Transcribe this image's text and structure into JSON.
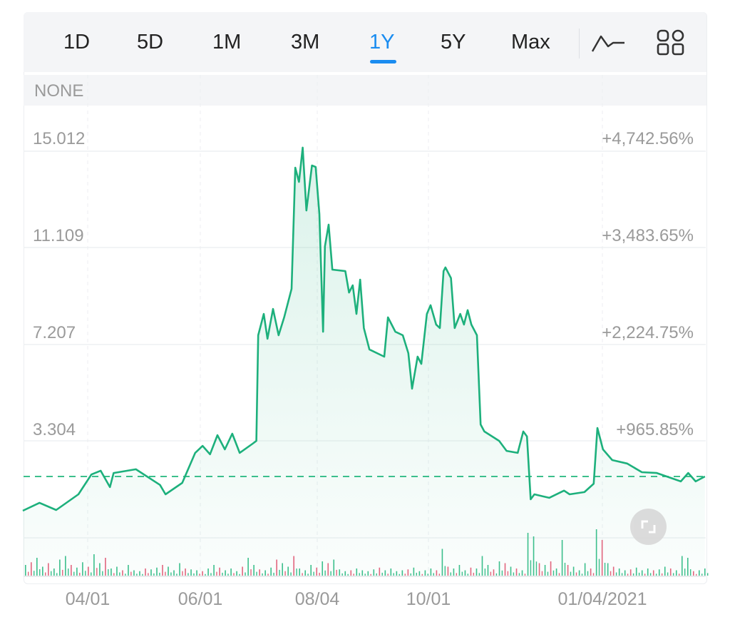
{
  "toolbar": {
    "tabs": [
      {
        "label": "1D"
      },
      {
        "label": "5D"
      },
      {
        "label": "1M"
      },
      {
        "label": "3M"
      },
      {
        "label": "1Y",
        "active": true
      },
      {
        "label": "5Y"
      },
      {
        "label": "Max"
      }
    ],
    "icons": [
      "line-chart-style-icon",
      "indicators-grid-icon"
    ]
  },
  "indicator_band": {
    "label": "NONE"
  },
  "colors": {
    "line": "#1db07c",
    "accent": "#1a8cf0",
    "up": "#3cbf8c",
    "down": "#e2657e",
    "reference": "#3cbf8c"
  },
  "chart_data": {
    "type": "line",
    "y_left_ticks": [
      "15.012",
      "11.109",
      "7.207",
      "3.304"
    ],
    "y_right_ticks": [
      "+4,742.56%",
      "+3,483.65%",
      "+2,224.75%",
      "+965.85%"
    ],
    "x_ticks": [
      "04/01",
      "06/01",
      "08/04",
      "10/01",
      "01/04/2021"
    ],
    "reference_line": 1.44,
    "grid": true,
    "points": [
      [
        "2020-02-26",
        0.06
      ],
      [
        "2020-03-06",
        0.38
      ],
      [
        "2020-03-15",
        0.09
      ],
      [
        "2020-03-27",
        0.72
      ],
      [
        "2020-04-03",
        1.52
      ],
      [
        "2020-04-08",
        1.67
      ],
      [
        "2020-04-13",
        1.01
      ],
      [
        "2020-04-15",
        1.58
      ],
      [
        "2020-04-27",
        1.73
      ],
      [
        "2020-05-10",
        1.1
      ],
      [
        "2020-05-13",
        0.72
      ],
      [
        "2020-05-22",
        1.18
      ],
      [
        "2020-05-29",
        2.39
      ],
      [
        "2020-06-02",
        2.67
      ],
      [
        "2020-06-06",
        2.33
      ],
      [
        "2020-06-10",
        3.1
      ],
      [
        "2020-06-14",
        2.53
      ],
      [
        "2020-06-18",
        3.16
      ],
      [
        "2020-06-22",
        2.39
      ],
      [
        "2020-06-29",
        2.76
      ],
      [
        "2020-07-01",
        2.87
      ],
      [
        "2020-07-02",
        7.12
      ],
      [
        "2020-07-05",
        7.98
      ],
      [
        "2020-07-07",
        6.98
      ],
      [
        "2020-07-10",
        8.18
      ],
      [
        "2020-07-13",
        7.12
      ],
      [
        "2020-07-16",
        7.84
      ],
      [
        "2020-07-20",
        8.99
      ],
      [
        "2020-07-22",
        13.86
      ],
      [
        "2020-07-24",
        13.29
      ],
      [
        "2020-07-26",
        14.67
      ],
      [
        "2020-07-28",
        12.14
      ],
      [
        "2020-07-31",
        13.95
      ],
      [
        "2020-08-02",
        13.89
      ],
      [
        "2020-08-04",
        12.0
      ],
      [
        "2020-08-06",
        7.26
      ],
      [
        "2020-08-07",
        10.7
      ],
      [
        "2020-08-09",
        11.57
      ],
      [
        "2020-08-11",
        9.76
      ],
      [
        "2020-08-18",
        9.7
      ],
      [
        "2020-08-20",
        8.84
      ],
      [
        "2020-08-22",
        9.13
      ],
      [
        "2020-08-24",
        7.98
      ],
      [
        "2020-08-26",
        9.36
      ],
      [
        "2020-08-28",
        7.41
      ],
      [
        "2020-08-31",
        6.55
      ],
      [
        "2020-09-08",
        6.26
      ],
      [
        "2020-09-10",
        7.84
      ],
      [
        "2020-09-14",
        7.26
      ],
      [
        "2020-09-18",
        7.12
      ],
      [
        "2020-09-21",
        6.4
      ],
      [
        "2020-09-23",
        4.97
      ],
      [
        "2020-09-26",
        6.26
      ],
      [
        "2020-09-28",
        5.97
      ],
      [
        "2020-10-01",
        7.98
      ],
      [
        "2020-10-03",
        8.33
      ],
      [
        "2020-10-06",
        7.55
      ],
      [
        "2020-10-08",
        7.41
      ],
      [
        "2020-10-10",
        9.7
      ],
      [
        "2020-10-11",
        9.85
      ],
      [
        "2020-10-14",
        9.42
      ],
      [
        "2020-10-16",
        7.41
      ],
      [
        "2020-10-19",
        7.98
      ],
      [
        "2020-10-21",
        7.55
      ],
      [
        "2020-10-23",
        8.13
      ],
      [
        "2020-10-25",
        7.55
      ],
      [
        "2020-10-28",
        7.12
      ],
      [
        "2020-10-30",
        3.53
      ],
      [
        "2020-11-01",
        3.25
      ],
      [
        "2020-11-09",
        2.87
      ],
      [
        "2020-11-13",
        2.47
      ],
      [
        "2020-11-19",
        2.39
      ],
      [
        "2020-11-22",
        3.25
      ],
      [
        "2020-11-24",
        3.05
      ],
      [
        "2020-11-26",
        0.52
      ],
      [
        "2020-11-28",
        0.72
      ],
      [
        "2020-12-06",
        0.58
      ],
      [
        "2020-12-14",
        0.87
      ],
      [
        "2020-12-17",
        0.72
      ],
      [
        "2020-12-25",
        0.81
      ],
      [
        "2020-12-30",
        1.15
      ],
      [
        "2021-01-01",
        3.39
      ],
      [
        "2021-01-04",
        2.53
      ],
      [
        "2021-01-09",
        2.1
      ],
      [
        "2021-01-17",
        1.96
      ],
      [
        "2021-01-25",
        1.61
      ],
      [
        "2021-02-02",
        1.58
      ],
      [
        "2021-02-15",
        1.24
      ],
      [
        "2021-02-19",
        1.58
      ],
      [
        "2021-02-23",
        1.24
      ],
      [
        "2021-02-28",
        1.44
      ]
    ],
    "volume": [
      12,
      -15,
      20,
      10,
      -14,
      8,
      18,
      22,
      -12,
      9,
      15,
      -10,
      24,
      14,
      -20,
      8,
      10,
      -6,
      12,
      6,
      5,
      -8,
      7,
      9,
      -12,
      10,
      6,
      14,
      -8,
      7,
      6,
      -5,
      8,
      12,
      -9,
      6,
      8,
      5,
      -10,
      20,
      12,
      -7,
      6,
      9,
      -18,
      14,
      10,
      -22,
      8,
      6,
      12,
      -9,
      16,
      -14,
      18,
      7,
      5,
      -6,
      8,
      6,
      5,
      7,
      -9,
      6,
      8,
      5,
      6,
      -7,
      9,
      5,
      6,
      8,
      -6,
      30,
      -10,
      8,
      12,
      6,
      -9,
      8,
      22,
      12,
      -7,
      16,
      -14,
      10,
      -8,
      6,
      48,
      44,
      -14,
      12,
      -16,
      8,
      40,
      -12,
      10,
      6,
      14,
      -8,
      52,
      -40,
      14,
      -10,
      8,
      6,
      -7,
      9,
      6,
      8,
      -6,
      7,
      10,
      -8,
      6,
      22,
      20,
      -5,
      6,
      8
    ]
  }
}
